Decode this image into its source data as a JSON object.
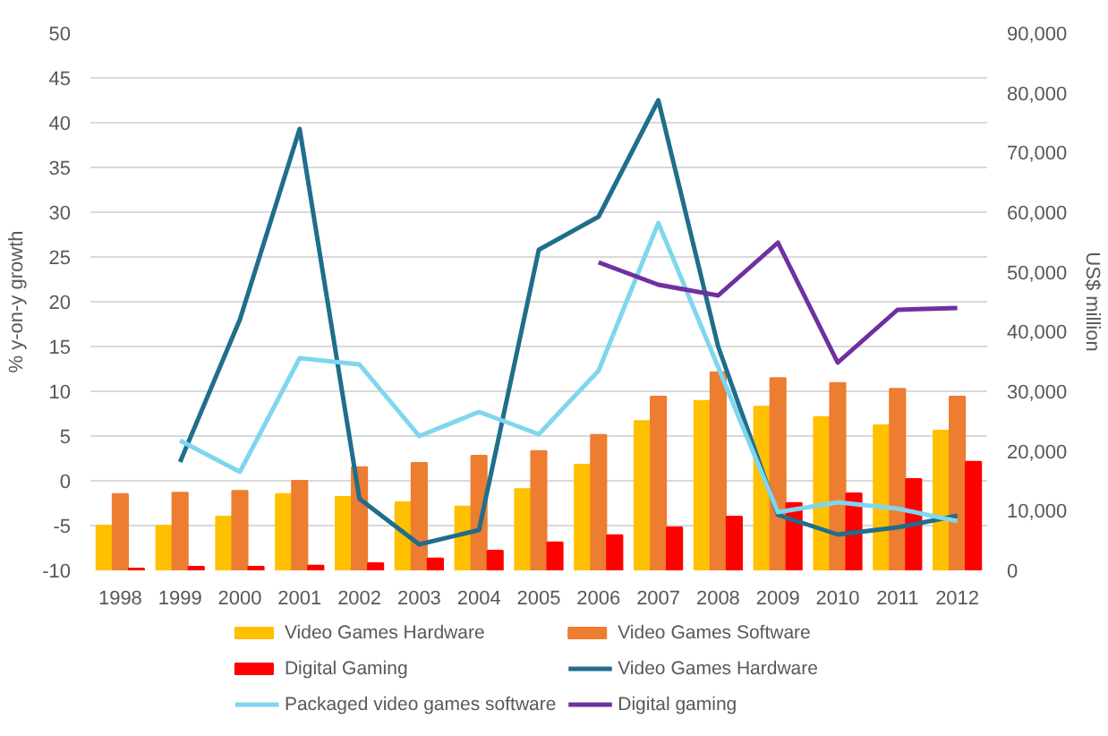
{
  "chart_data": {
    "type": "bar",
    "ylabel": "% y-on-y growth",
    "y2label": "US$ million",
    "categories": [
      "1998",
      "1999",
      "2000",
      "2001",
      "2002",
      "2003",
      "2004",
      "2005",
      "2006",
      "2007",
      "2008",
      "2009",
      "2010",
      "2011",
      "2012"
    ],
    "series": [
      {
        "name": "Video Games Hardware",
        "axis": "y2",
        "color": "#ffc000",
        "values": [
          7500,
          7500,
          9000,
          12800,
          12300,
          11400,
          10700,
          13600,
          17700,
          25000,
          28400,
          27400,
          25700,
          24300,
          23400
        ]
      },
      {
        "name": "Video Games Software",
        "axis": "y2",
        "color": "#ed7d31",
        "values": [
          12800,
          13000,
          13300,
          15000,
          17300,
          18000,
          19200,
          20000,
          22700,
          29100,
          33200,
          32200,
          31400,
          30400,
          29100
        ]
      },
      {
        "name": "Digital Gaming",
        "axis": "y2",
        "color": "#ff0000",
        "values": [
          300,
          600,
          600,
          800,
          1200,
          2000,
          3300,
          4700,
          5900,
          7200,
          9000,
          11300,
          12900,
          15300,
          18200
        ]
      },
      {
        "name": "Video Games Hardware",
        "type": "line",
        "color": "#1f6e8c",
        "values": [
          null,
          2.1,
          18,
          39.3,
          -2,
          -7.1,
          -5.5,
          25.8,
          29.5,
          42.5,
          15,
          -3.8,
          -6,
          -5.2,
          -3.9
        ]
      },
      {
        "name": "Packaged video games software",
        "type": "line",
        "color": "#7fd6ee",
        "values": [
          null,
          4.5,
          1,
          13.7,
          13,
          5,
          7.7,
          5.2,
          12.3,
          28.8,
          12.7,
          -3.5,
          -2.4,
          -3.1,
          -4.5
        ]
      },
      {
        "name": "Digital gaming",
        "type": "line",
        "color": "#7030a0",
        "values": [
          null,
          null,
          null,
          null,
          null,
          null,
          null,
          null,
          24.4,
          21.9,
          20.7,
          26.6,
          13.2,
          19.1,
          19.3
        ]
      }
    ],
    "ylim": [
      -10,
      50
    ],
    "yticks": [
      -10,
      -5,
      0,
      5,
      10,
      15,
      20,
      25,
      30,
      35,
      40,
      45,
      50
    ],
    "y2lim": [
      0,
      90000
    ],
    "y2ticks": [
      0,
      {
        "value": 10000,
        "label": "10,000"
      },
      {
        "value": 20000,
        "label": "20,000"
      },
      {
        "value": 30000,
        "label": "30,000"
      },
      {
        "value": 40000,
        "label": "40,000"
      },
      {
        "value": 50000,
        "label": "50,000"
      },
      {
        "value": 60000,
        "label": "60,000"
      },
      {
        "value": 70000,
        "label": "70,000"
      },
      {
        "value": 80000,
        "label": "80,000"
      },
      {
        "value": 90000,
        "label": "90,000"
      }
    ],
    "grid": "y",
    "legend": "bottom",
    "line_style": "solid"
  }
}
